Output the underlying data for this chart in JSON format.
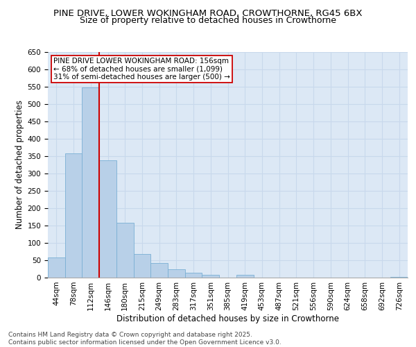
{
  "title_line1": "PINE DRIVE, LOWER WOKINGHAM ROAD, CROWTHORNE, RG45 6BX",
  "title_line2": "Size of property relative to detached houses in Crowthorne",
  "xlabel": "Distribution of detached houses by size in Crowthorne",
  "ylabel": "Number of detached properties",
  "categories": [
    "44sqm",
    "78sqm",
    "112sqm",
    "146sqm",
    "180sqm",
    "215sqm",
    "249sqm",
    "283sqm",
    "317sqm",
    "351sqm",
    "385sqm",
    "419sqm",
    "453sqm",
    "487sqm",
    "521sqm",
    "556sqm",
    "590sqm",
    "624sqm",
    "658sqm",
    "692sqm",
    "726sqm"
  ],
  "values": [
    58,
    357,
    547,
    338,
    158,
    68,
    42,
    24,
    15,
    9,
    0,
    9,
    0,
    0,
    0,
    0,
    0,
    0,
    0,
    0,
    3
  ],
  "bar_color": "#b8d0e8",
  "bar_edge_color": "#7aafd4",
  "grid_color": "#c8d8ec",
  "background_color": "#dce8f5",
  "marker_color": "#cc0000",
  "annotation_text": "PINE DRIVE LOWER WOKINGHAM ROAD: 156sqm\n← 68% of detached houses are smaller (1,099)\n31% of semi-detached houses are larger (500) →",
  "ylim": [
    0,
    650
  ],
  "yticks": [
    0,
    50,
    100,
    150,
    200,
    250,
    300,
    350,
    400,
    450,
    500,
    550,
    600,
    650
  ],
  "footer_text": "Contains HM Land Registry data © Crown copyright and database right 2025.\nContains public sector information licensed under the Open Government Licence v3.0.",
  "title_fontsize": 9.5,
  "subtitle_fontsize": 9,
  "axis_label_fontsize": 8.5,
  "tick_fontsize": 7.5,
  "annotation_fontsize": 7.5,
  "footer_fontsize": 6.5
}
